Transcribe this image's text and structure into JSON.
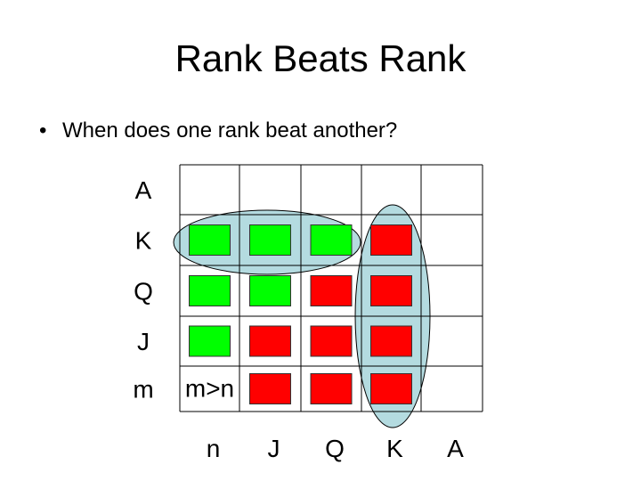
{
  "slide": {
    "title": "Rank Beats Rank",
    "bullet": "When does one rank beat another?"
  },
  "grid": {
    "row_labels": [
      "A",
      "K",
      "Q",
      "J",
      "m"
    ],
    "col_labels": [
      "n",
      "J",
      "Q",
      "K",
      "A"
    ],
    "corner_label": "m>n",
    "cells": [
      [
        "",
        "",
        "",
        "",
        ""
      ],
      [
        "green",
        "green",
        "green",
        "red",
        ""
      ],
      [
        "green",
        "green",
        "red",
        "red",
        ""
      ],
      [
        "green",
        "red",
        "red",
        "red",
        ""
      ],
      [
        "label",
        "red",
        "red",
        "red",
        ""
      ]
    ],
    "highlights": [
      "row K",
      "column K"
    ]
  },
  "colors": {
    "green": "#00ff00",
    "red": "#ff0000",
    "highlight": "#b4dbe0",
    "grid": "#000000"
  }
}
